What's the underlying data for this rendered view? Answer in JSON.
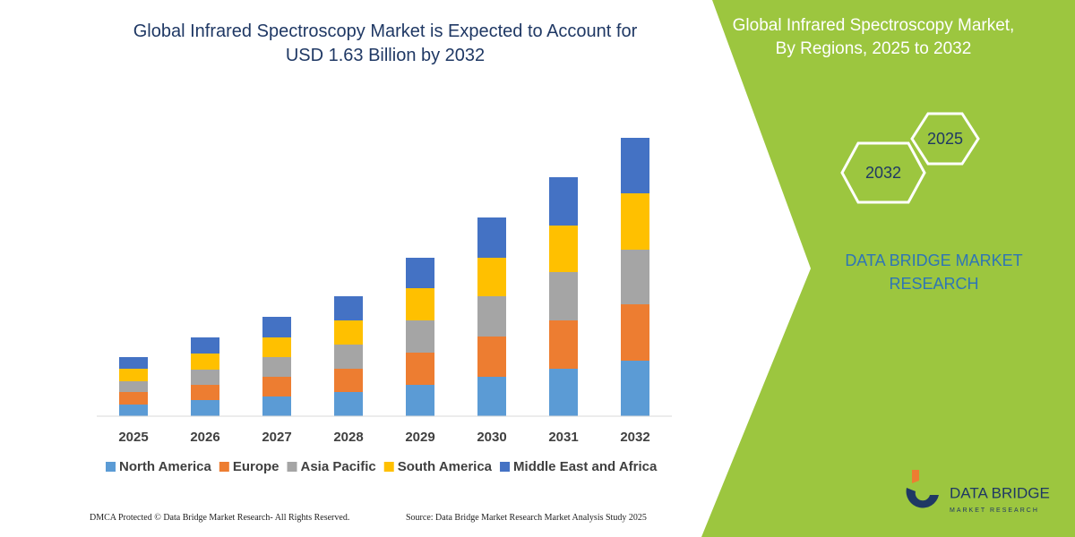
{
  "chart_data": {
    "type": "stacked_bar",
    "title": "Global Infrared Spectroscopy Market is Expected to Account for USD 1.63 Billion by 2032",
    "categories": [
      "2025",
      "2026",
      "2027",
      "2028",
      "2029",
      "2030",
      "2031",
      "2032"
    ],
    "series": [
      {
        "name": "North America",
        "color": "#5b9bd5",
        "values": [
          13,
          18,
          22,
          27,
          35,
          44,
          53,
          62
        ]
      },
      {
        "name": "Europe",
        "color": "#ed7d31",
        "values": [
          14,
          17,
          22,
          26,
          36,
          45,
          54,
          63
        ]
      },
      {
        "name": "Asia Pacific",
        "color": "#a5a5a5",
        "values": [
          12,
          17,
          22,
          27,
          36,
          45,
          54,
          61
        ]
      },
      {
        "name": "South America",
        "color": "#ffc000",
        "values": [
          14,
          18,
          22,
          27,
          36,
          43,
          52,
          63
        ]
      },
      {
        "name": "Middle East and Africa",
        "color": "#4472c4",
        "values": [
          13,
          18,
          23,
          27,
          34,
          45,
          54,
          62
        ]
      }
    ]
  },
  "side_panel": {
    "title": "Global Infrared Spectroscopy Market, By Regions, 2025 to 2032",
    "hexagons": [
      "2025",
      "2032"
    ],
    "brand": "DATA BRIDGE MARKET RESEARCH"
  },
  "footer": {
    "copyright": "DMCA Protected © Data Bridge Market Research-  All Rights Reserved.",
    "source": "Source: Data Bridge Market Research  Market Analysis Study 2025"
  },
  "logo": {
    "name": "DATA BRIDGE",
    "tagline": "MARKET RESEARCH"
  }
}
